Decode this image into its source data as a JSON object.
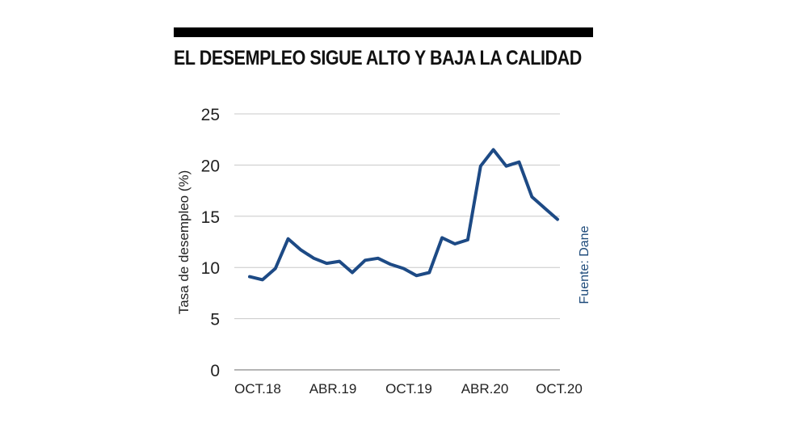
{
  "header": {
    "title": "EL DESEMPLEO SIGUE ALTO Y BAJA LA CALIDAD"
  },
  "source": "Fuente: Dane",
  "colors": {
    "line": "#1d4a85",
    "grid": "#c8c8c8",
    "bar": "#000000"
  },
  "chart_data": {
    "type": "line",
    "title": "EL DESEMPLEO SIGUE ALTO Y BAJA LA CALIDAD",
    "xlabel": "",
    "ylabel": "Tasa de desempleo (%)",
    "ylim": [
      0,
      25
    ],
    "yticks": [
      "0",
      "5",
      "10",
      "15",
      "20",
      "25"
    ],
    "xtick_labels": [
      "OCT.18",
      "ABR.19",
      "OCT.19",
      "ABR.20",
      "OCT.20"
    ],
    "grid": true,
    "x": [
      "Oct 2018",
      "Nov 2018",
      "Dic 2018",
      "Ene 2019",
      "Feb 2019",
      "Mar 2019",
      "Abr 2019",
      "May 2019",
      "Jun 2019",
      "Jul 2019",
      "Ago 2019",
      "Sep 2019",
      "Oct 2019",
      "Nov 2019",
      "Dic 2019",
      "Ene 2020",
      "Feb 2020",
      "Mar 2020",
      "Abr 2020",
      "May 2020",
      "Jun 2020",
      "Jul 2020",
      "Ago 2020",
      "Sep 2020",
      "Oct 2020"
    ],
    "series": [
      {
        "name": "Tasa de desempleo (%)",
        "values": [
          9.1,
          8.8,
          9.9,
          12.8,
          11.7,
          10.9,
          10.4,
          10.6,
          9.5,
          10.7,
          10.9,
          10.3,
          9.9,
          9.2,
          9.5,
          12.9,
          12.3,
          12.7,
          19.9,
          21.5,
          19.9,
          20.3,
          16.9,
          15.8,
          14.7
        ]
      }
    ],
    "source": "Fuente: Dane"
  }
}
